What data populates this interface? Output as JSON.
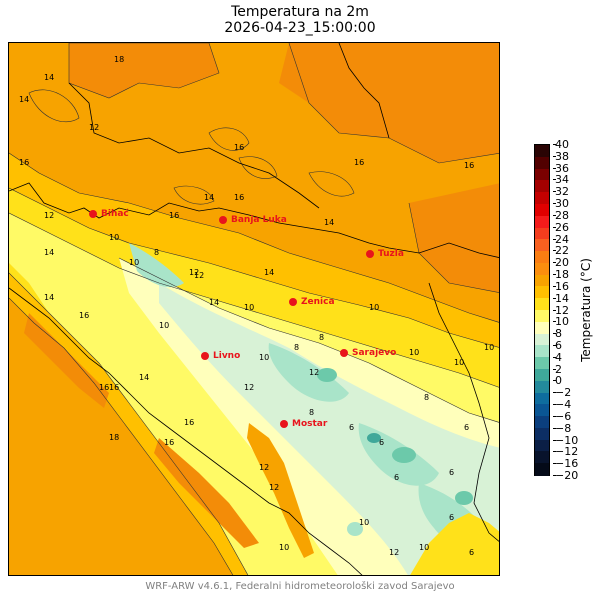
{
  "title": {
    "line1": "Temperatura na 2m",
    "line2": "2026-04-23_15:00:00"
  },
  "colorbar": {
    "label": "Temperatura (°C)",
    "ticks": [
      "40",
      "38",
      "36",
      "34",
      "32",
      "30",
      "28",
      "26",
      "24",
      "22",
      "20",
      "18",
      "16",
      "14",
      "12",
      "10",
      "8",
      "6",
      "4",
      "2",
      "0",
      "−2",
      "−4",
      "−6",
      "−8",
      "−10",
      "−12",
      "−16",
      "−20"
    ],
    "colors": [
      "#2a0404",
      "#520000",
      "#7a0000",
      "#a40000",
      "#c40000",
      "#e00000",
      "#f41b1b",
      "#f43d1e",
      "#f86020",
      "#fa7d12",
      "#fb8e0e",
      "#f8a300",
      "#ffc000",
      "#ffe11a",
      "#fffa66",
      "#ffffbb",
      "#d8f2d6",
      "#a9e4c9",
      "#6cc9aa",
      "#3fa89a",
      "#238a9c",
      "#0e6d9e",
      "#0a5694",
      "#0b3f7e",
      "#0c2e64",
      "#0b1f46",
      "#08132c",
      "#040a18"
    ]
  },
  "cities": [
    {
      "name": "Bihać"
    },
    {
      "name": "Banja Luka"
    },
    {
      "name": "Tuzla"
    },
    {
      "name": "Zenica"
    },
    {
      "name": "Sarajevo"
    },
    {
      "name": "Livno"
    },
    {
      "name": "Mostar"
    }
  ],
  "isotherm_labels": [
    "18",
    "14",
    "14",
    "12",
    "16",
    "16",
    "16",
    "14",
    "16",
    "16",
    "14",
    "12",
    "14",
    "16",
    "14",
    "10",
    "10",
    "8",
    "12",
    "14",
    "14",
    "10",
    "8",
    "10",
    "16",
    "8",
    "12",
    "12",
    "10",
    "10",
    "10",
    "8",
    "6",
    "6",
    "6",
    "6",
    "12",
    "16",
    "18",
    "12",
    "10",
    "16",
    "14",
    "16",
    "16",
    "10",
    "12",
    "10",
    "8",
    "6",
    "6",
    "10",
    "10",
    "12",
    "6"
  ],
  "footer": "WRF-ARW v4.6.1, Federalni hidrometeorološki zavod Sarajevo"
}
